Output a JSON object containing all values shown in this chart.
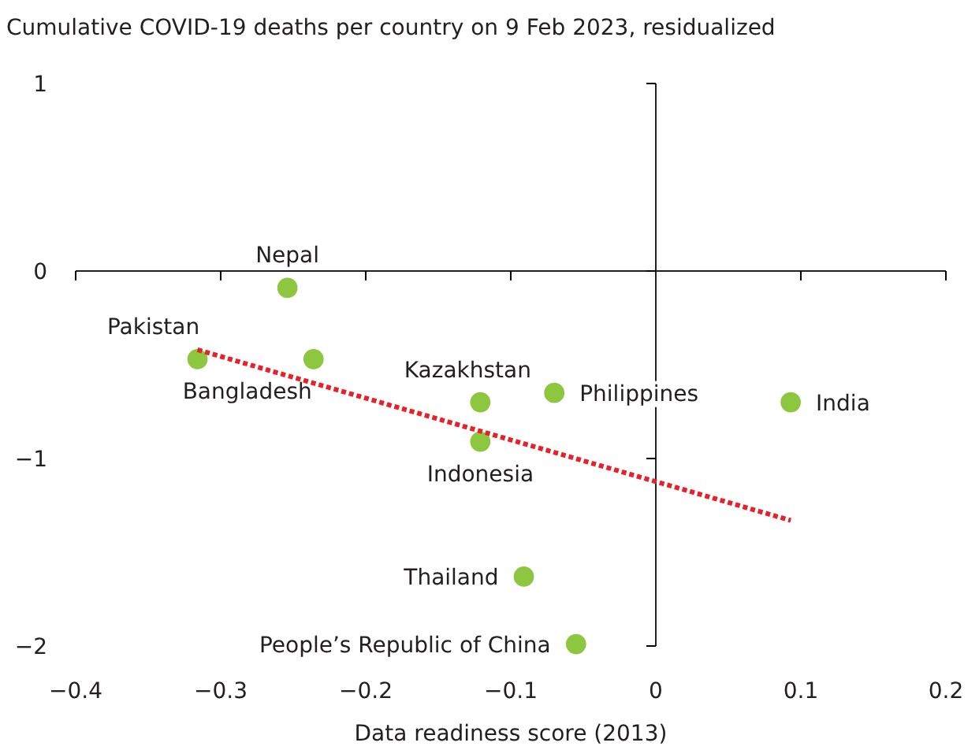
{
  "chart_data": {
    "type": "scatter",
    "title": "Cumulative COVID-19 deaths per country on 9 Feb 2023, residualized",
    "xlabel": "Data readiness score (2013)",
    "xlim": [
      -0.4,
      0.2
    ],
    "xticks": [
      -0.4,
      -0.3,
      -0.2,
      -0.1,
      0,
      0.1,
      0.2
    ],
    "ylim": [
      -2,
      1
    ],
    "yticks": [
      -2,
      -1,
      0,
      1
    ],
    "marker": "circle",
    "legend": false,
    "series": [
      {
        "name": "Nepal",
        "color": "#8dc63f",
        "x": [
          -0.254
        ],
        "values": [
          -0.09
        ]
      },
      {
        "name": "Pakistan",
        "color": "#8dc63f",
        "x": [
          -0.316
        ],
        "values": [
          -0.47
        ]
      },
      {
        "name": "Bangladesh",
        "color": "#8dc63f",
        "x": [
          -0.236
        ],
        "values": [
          -0.47
        ]
      },
      {
        "name": "Kazakhstan",
        "color": "#8dc63f",
        "x": [
          -0.121
        ],
        "values": [
          -0.7
        ]
      },
      {
        "name": "Philippines",
        "color": "#8dc63f",
        "x": [
          -0.07
        ],
        "values": [
          -0.65
        ]
      },
      {
        "name": "India",
        "color": "#8dc63f",
        "x": [
          0.093
        ],
        "values": [
          -0.7
        ]
      },
      {
        "name": "Indonesia",
        "color": "#8dc63f",
        "x": [
          -0.121
        ],
        "values": [
          -0.91
        ]
      },
      {
        "name": "Thailand",
        "color": "#8dc63f",
        "x": [
          -0.091
        ],
        "values": [
          -1.63
        ]
      },
      {
        "name": "People’s Republic of China",
        "color": "#8dc63f",
        "x": [
          -0.055
        ],
        "values": [
          -1.99
        ]
      },
      {
        "type": "line",
        "color": "#e8202a",
        "line_style": "dotted",
        "marker": "none",
        "x": [
          -0.316,
          0.093
        ],
        "values": [
          -0.42,
          -1.33
        ]
      }
    ]
  }
}
